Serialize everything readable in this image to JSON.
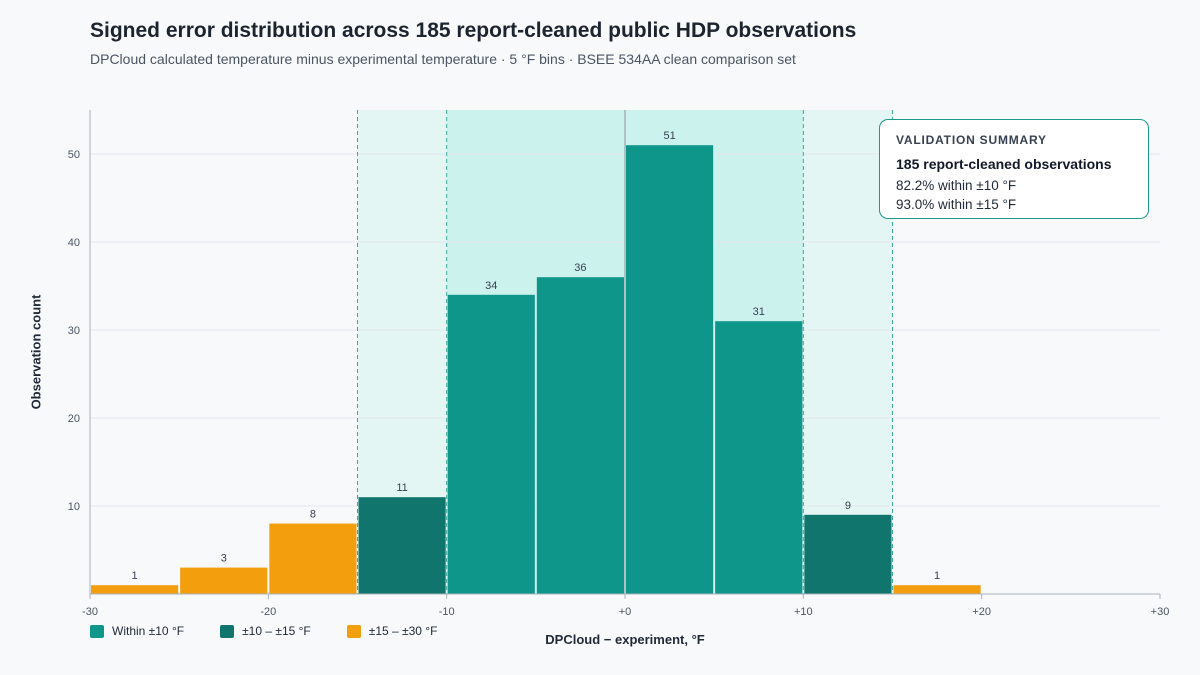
{
  "header": {
    "title": "Signed error distribution across 185 report-cleaned public HDP observations",
    "subtitle": "DPCloud calculated temperature minus experimental temperature · 5 °F bins · BSEE 534AA clean comparison set"
  },
  "summary": {
    "heading": "VALIDATION SUMMARY",
    "count": "185 report-cleaned observations",
    "line1": "82.2% within ±10 °F",
    "line2": "93.0% within ±15 °F"
  },
  "legend": {
    "items": [
      {
        "label": "Within ±10 °F",
        "color": "#0e968a"
      },
      {
        "label": "±10 – ±15 °F",
        "color": "#10756d"
      },
      {
        "label": "±15 – ±30 °F",
        "color": "#f29e0d"
      }
    ]
  },
  "colors": {
    "within10": "#0e968a",
    "within15": "#10756d",
    "within30": "#f29e0d",
    "band_outer": "#e3f6f4",
    "band_inner": "#ccf2ee",
    "guide_line": "#3fa898",
    "zero_line": "#9aa3ad"
  },
  "chart_data": {
    "type": "bar",
    "xlabel": "DPCloud − experiment, °F",
    "ylabel": "Observation count",
    "xlim": [
      -30,
      30
    ],
    "ylim": [
      0,
      55
    ],
    "x_ticks": [
      "-30",
      "-20",
      "-10",
      "+0",
      "+10",
      "+20",
      "+30"
    ],
    "x_tick_values": [
      -30,
      -20,
      -10,
      0,
      10,
      20,
      30
    ],
    "y_ticks": [
      10,
      20,
      30,
      40,
      50
    ],
    "grid": true,
    "bins": [
      {
        "from": -30,
        "to": -25,
        "count": 1,
        "group": "±15 – ±30 °F"
      },
      {
        "from": -25,
        "to": -20,
        "count": 3,
        "group": "±15 – ±30 °F"
      },
      {
        "from": -20,
        "to": -15,
        "count": 8,
        "group": "±15 – ±30 °F"
      },
      {
        "from": -15,
        "to": -10,
        "count": 11,
        "group": "±10 – ±15 °F"
      },
      {
        "from": -10,
        "to": -5,
        "count": 34,
        "group": "Within ±10 °F"
      },
      {
        "from": -5,
        "to": 0,
        "count": 36,
        "group": "Within ±10 °F"
      },
      {
        "from": 0,
        "to": 5,
        "count": 51,
        "group": "Within ±10 °F"
      },
      {
        "from": 5,
        "to": 10,
        "count": 31,
        "group": "Within ±10 °F"
      },
      {
        "from": 10,
        "to": 15,
        "count": 9,
        "group": "±10 – ±15 °F"
      },
      {
        "from": 15,
        "to": 20,
        "count": 1,
        "group": "±15 – ±30 °F"
      }
    ],
    "shaded_bands": [
      {
        "from": -15,
        "to": 15,
        "label": "±15 °F"
      },
      {
        "from": -10,
        "to": 10,
        "label": "±10 °F"
      }
    ],
    "legend_position": "bottom-left"
  }
}
